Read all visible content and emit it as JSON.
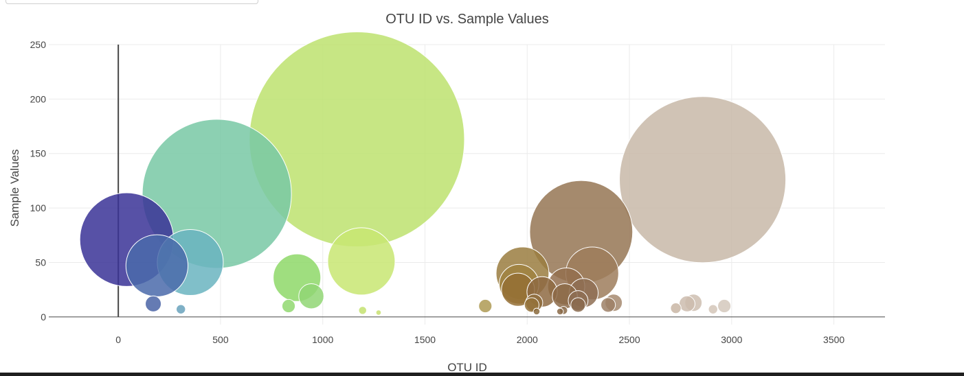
{
  "chart_data": {
    "type": "scatter",
    "title": "OTU ID vs. Sample Values",
    "xlabel": "OTU ID",
    "ylabel": "Sample Values",
    "xlim": [
      -340,
      3750
    ],
    "ylim": [
      -7,
      255
    ],
    "x_ticks": [
      0,
      500,
      1000,
      1500,
      2000,
      2500,
      3000,
      3500
    ],
    "y_ticks": [
      0,
      50,
      100,
      150,
      200,
      250
    ],
    "grid": true,
    "legend": "none",
    "points": [
      {
        "x": 41,
        "y": 71,
        "size": 71,
        "color": "#3a3296"
      },
      {
        "x": 189,
        "y": 47,
        "size": 47,
        "color": "#4a6aaa"
      },
      {
        "x": 171,
        "y": 12,
        "size": 12,
        "color": "#4a64a6"
      },
      {
        "x": 352,
        "y": 50,
        "size": 50,
        "color": "#6ab4c0"
      },
      {
        "x": 306,
        "y": 7,
        "size": 7,
        "color": "#68a2bc"
      },
      {
        "x": 482,
        "y": 113,
        "size": 113,
        "color": "#78c8a4"
      },
      {
        "x": 874,
        "y": 36,
        "size": 36,
        "color": "#8ed868"
      },
      {
        "x": 944,
        "y": 19,
        "size": 19,
        "color": "#90d674"
      },
      {
        "x": 833,
        "y": 10,
        "size": 10,
        "color": "#90d870"
      },
      {
        "x": 1167,
        "y": 163,
        "size": 163,
        "color": "#bde26e"
      },
      {
        "x": 1189,
        "y": 51,
        "size": 51,
        "color": "#c8e672"
      },
      {
        "x": 1195,
        "y": 6,
        "size": 6,
        "color": "#c4e270"
      },
      {
        "x": 1795,
        "y": 10,
        "size": 10,
        "color": "#ae9a54"
      },
      {
        "x": 1977,
        "y": 40,
        "size": 40,
        "color": "#9a7c40"
      },
      {
        "x": 1960,
        "y": 30,
        "size": 30,
        "color": "#a08240"
      },
      {
        "x": 1955,
        "y": 25,
        "size": 25,
        "color": "#946e34"
      },
      {
        "x": 2022,
        "y": 11,
        "size": 11,
        "color": "#94723a"
      },
      {
        "x": 2034,
        "y": 13,
        "size": 13,
        "color": "#8e6c3c"
      },
      {
        "x": 2073,
        "y": 23,
        "size": 23,
        "color": "#8e6a42"
      },
      {
        "x": 2191,
        "y": 28,
        "size": 28,
        "color": "#936f4e"
      },
      {
        "x": 2184,
        "y": 19,
        "size": 19,
        "color": "#8c6a48"
      },
      {
        "x": 2264,
        "y": 78,
        "size": 78,
        "color": "#957554"
      },
      {
        "x": 2318,
        "y": 40,
        "size": 40,
        "color": "#9d7c5c"
      },
      {
        "x": 2276,
        "y": 22,
        "size": 22,
        "color": "#8e6e54"
      },
      {
        "x": 2249,
        "y": 15,
        "size": 15,
        "color": "#8e6e54"
      },
      {
        "x": 2249,
        "y": 11,
        "size": 11,
        "color": "#8a6a4e"
      },
      {
        "x": 2396,
        "y": 11,
        "size": 11,
        "color": "#9e8066"
      },
      {
        "x": 2423,
        "y": 13,
        "size": 13,
        "color": "#a68a70"
      },
      {
        "x": 2858,
        "y": 126,
        "size": 126,
        "color": "#c8b8a8"
      },
      {
        "x": 2782,
        "y": 12,
        "size": 12,
        "color": "#ccbcae"
      },
      {
        "x": 2813,
        "y": 13,
        "size": 13,
        "color": "#cebeb0"
      },
      {
        "x": 2727,
        "y": 8,
        "size": 8,
        "color": "#c9b6a4"
      },
      {
        "x": 2909,
        "y": 7,
        "size": 7,
        "color": "#d4c6b8"
      },
      {
        "x": 2964,
        "y": 10,
        "size": 10,
        "color": "#d4c8bc"
      },
      {
        "x": 1273,
        "y": 4,
        "size": 4,
        "color": "#c8e070"
      },
      {
        "x": 2046,
        "y": 5,
        "size": 5,
        "color": "#8a6a3c"
      },
      {
        "x": 2178,
        "y": 6,
        "size": 6,
        "color": "#8a6a48"
      },
      {
        "x": 2161,
        "y": 5,
        "size": 5,
        "color": "#8a6a48"
      }
    ]
  }
}
